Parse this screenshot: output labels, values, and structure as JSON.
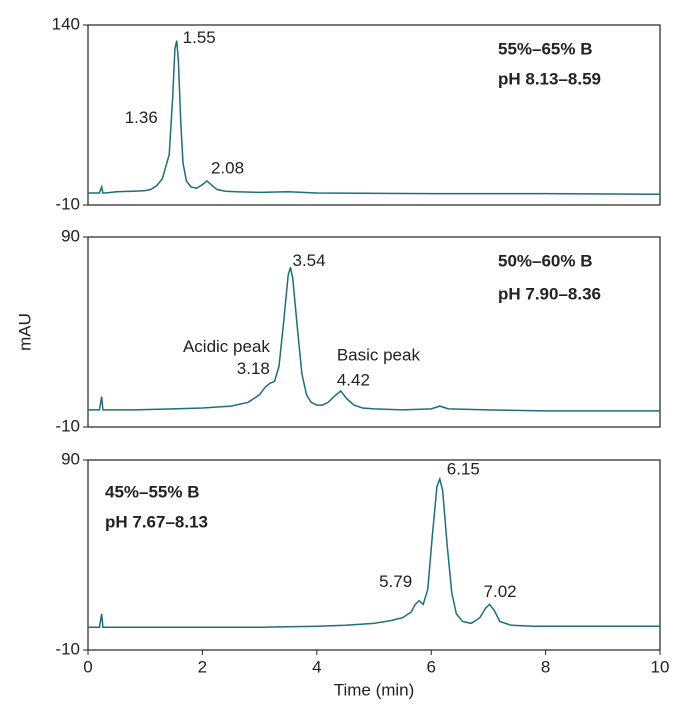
{
  "chart_data": [
    {
      "type": "line",
      "ylim": [
        -10,
        140
      ],
      "yticks": [
        -10,
        140
      ],
      "xlim": [
        0,
        10
      ],
      "notes": [
        "55%–65% B",
        "pH 8.13–8.59"
      ],
      "series": [
        {
          "color": "#1f6e7a",
          "x": [
            0,
            0.2,
            0.24,
            0.26,
            0.3,
            0.5,
            0.8,
            1.0,
            1.1,
            1.2,
            1.3,
            1.36,
            1.42,
            1.48,
            1.52,
            1.55,
            1.58,
            1.62,
            1.66,
            1.72,
            1.8,
            1.9,
            2.0,
            2.08,
            2.15,
            2.25,
            2.4,
            2.6,
            3.0,
            3.5,
            4.0,
            6,
            8,
            10
          ],
          "values": [
            0,
            0,
            5,
            0,
            0,
            1,
            1.5,
            2,
            3,
            6,
            12,
            22,
            32,
            80,
            120,
            127,
            110,
            60,
            25,
            10,
            5,
            4,
            7,
            10,
            7,
            3,
            1.5,
            1,
            0.5,
            1,
            0,
            -0.5,
            -0.5,
            -1
          ]
        }
      ],
      "peaks": [
        {
          "x": 1.36,
          "y": 22
        },
        {
          "x": 1.55,
          "y": 127
        },
        {
          "x": 2.08,
          "y": 10
        }
      ]
    },
    {
      "type": "line",
      "ylim": [
        -10,
        90
      ],
      "yticks": [
        -10,
        90
      ],
      "xlim": [
        0,
        10
      ],
      "ylabel": "mAU",
      "notes": [
        "50%–60% B",
        "pH 7.90–8.36"
      ],
      "series": [
        {
          "color": "#1f6e7a",
          "x": [
            0,
            0.2,
            0.24,
            0.26,
            0.3,
            0.8,
            1.5,
            2.0,
            2.5,
            2.8,
            3.0,
            3.1,
            3.18,
            3.26,
            3.34,
            3.42,
            3.5,
            3.54,
            3.58,
            3.66,
            3.74,
            3.82,
            3.9,
            4.0,
            4.1,
            4.2,
            4.3,
            4.42,
            4.52,
            4.65,
            4.8,
            5.0,
            5.5,
            6.0,
            6.15,
            6.3,
            7,
            8,
            10
          ],
          "values": [
            -1,
            -1,
            6,
            -1,
            -1,
            -1,
            -0.5,
            0,
            1,
            3,
            7,
            11,
            13,
            14,
            22,
            45,
            70,
            74,
            68,
            42,
            18,
            7,
            3,
            1.5,
            1.5,
            3,
            6,
            9,
            5,
            1.5,
            0,
            -0.5,
            -1,
            -0.5,
            1,
            -0.5,
            -1,
            -1.5,
            -1.5
          ]
        }
      ],
      "peaks": [
        {
          "x": 3.18,
          "y": 13,
          "name": "Acidic peak"
        },
        {
          "x": 3.54,
          "y": 74
        },
        {
          "x": 4.42,
          "y": 9,
          "name": "Basic peak"
        }
      ]
    },
    {
      "type": "line",
      "ylim": [
        -10,
        90
      ],
      "yticks": [
        -10,
        90
      ],
      "xlim": [
        0,
        10
      ],
      "xticks": [
        0,
        2,
        4,
        6,
        8,
        10
      ],
      "xlabel": "Time (min)",
      "notes": [
        "45%–55% B",
        "pH 7.67–8.13"
      ],
      "series": [
        {
          "color": "#1f6e7a",
          "x": [
            0,
            0.2,
            0.24,
            0.26,
            0.3,
            1,
            2,
            3,
            4,
            4.5,
            5,
            5.3,
            5.5,
            5.65,
            5.72,
            5.79,
            5.86,
            5.94,
            6.02,
            6.1,
            6.15,
            6.2,
            6.28,
            6.36,
            6.44,
            6.55,
            6.7,
            6.85,
            6.95,
            7.02,
            7.1,
            7.2,
            7.4,
            7.8,
            8,
            9,
            10
          ],
          "values": [
            2,
            2,
            9,
            2,
            2,
            2,
            2,
            2,
            2.5,
            3,
            4,
            5.5,
            7,
            10,
            14,
            16,
            14,
            22,
            50,
            76,
            80,
            74,
            45,
            20,
            9,
            5,
            4,
            7,
            12,
            14,
            11,
            5,
            3,
            2.5,
            2.5,
            2.5,
            2.5
          ]
        }
      ],
      "peaks": [
        {
          "x": 5.79,
          "y": 16
        },
        {
          "x": 6.15,
          "y": 80
        },
        {
          "x": 7.02,
          "y": 14
        }
      ]
    }
  ]
}
